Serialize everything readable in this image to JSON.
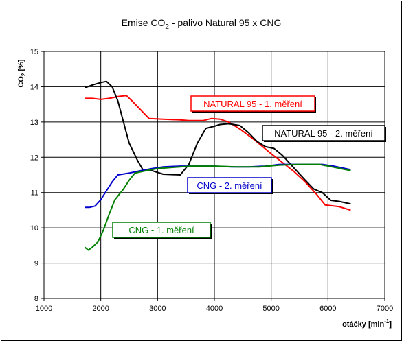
{
  "chart_data": {
    "type": "line",
    "title": "Emise CO",
    "title_sub": "2",
    "title_rest": " - palivo Natural 95 x CNG",
    "ylabel": "CO",
    "ylabel_sub": "2",
    "ylabel_unit": " [%]",
    "xlabel": "otáčky [min",
    "xlabel_sup": "-1",
    "xlabel_end": "]",
    "xlim": [
      1000,
      7000
    ],
    "ylim": [
      8,
      15
    ],
    "x_ticks": [
      "1000",
      "2000",
      "3000",
      "4000",
      "5000",
      "6000",
      "7000"
    ],
    "y_ticks": [
      "8",
      "9",
      "10",
      "11",
      "12",
      "13",
      "14",
      "15"
    ],
    "grid": true,
    "series": [
      {
        "name": "NATURAL 95 - 1. měření",
        "color": "#ff0000",
        "points": [
          [
            1720,
            13.67
          ],
          [
            1850,
            13.67
          ],
          [
            2000,
            13.64
          ],
          [
            2150,
            13.67
          ],
          [
            2300,
            13.72
          ],
          [
            2450,
            13.75
          ],
          [
            2550,
            13.6
          ],
          [
            2700,
            13.35
          ],
          [
            2850,
            13.1
          ],
          [
            3100,
            13.08
          ],
          [
            3400,
            13.06
          ],
          [
            3550,
            13.04
          ],
          [
            3800,
            13.04
          ],
          [
            3950,
            13.1
          ],
          [
            4100,
            13.08
          ],
          [
            4250,
            13.0
          ],
          [
            4450,
            12.8
          ],
          [
            4700,
            12.5
          ],
          [
            4850,
            12.3
          ],
          [
            5000,
            12.1
          ],
          [
            5200,
            11.85
          ],
          [
            5400,
            11.6
          ],
          [
            5600,
            11.3
          ],
          [
            5800,
            10.95
          ],
          [
            5950,
            10.65
          ],
          [
            6200,
            10.6
          ],
          [
            6400,
            10.5
          ]
        ]
      },
      {
        "name": "NATURAL 95 - 2. měření",
        "color": "#000000",
        "points": [
          [
            1720,
            13.97
          ],
          [
            1850,
            14.05
          ],
          [
            2000,
            14.12
          ],
          [
            2100,
            14.15
          ],
          [
            2200,
            14.0
          ],
          [
            2300,
            13.6
          ],
          [
            2400,
            13.0
          ],
          [
            2500,
            12.4
          ],
          [
            2650,
            11.9
          ],
          [
            2750,
            11.62
          ],
          [
            2900,
            11.62
          ],
          [
            3100,
            11.52
          ],
          [
            3400,
            11.5
          ],
          [
            3550,
            11.8
          ],
          [
            3700,
            12.4
          ],
          [
            3850,
            12.82
          ],
          [
            4000,
            12.88
          ],
          [
            4100,
            12.93
          ],
          [
            4250,
            12.95
          ],
          [
            4450,
            12.9
          ],
          [
            4600,
            12.7
          ],
          [
            4750,
            12.45
          ],
          [
            4900,
            12.3
          ],
          [
            5050,
            12.25
          ],
          [
            5200,
            12.05
          ],
          [
            5400,
            11.7
          ],
          [
            5600,
            11.35
          ],
          [
            5750,
            11.1
          ],
          [
            5900,
            11.0
          ],
          [
            6050,
            10.78
          ],
          [
            6200,
            10.75
          ],
          [
            6400,
            10.68
          ]
        ]
      },
      {
        "name": "CNG - 2. měření",
        "color": "#0000cc",
        "points": [
          [
            1720,
            10.58
          ],
          [
            1800,
            10.58
          ],
          [
            1900,
            10.62
          ],
          [
            2000,
            10.8
          ],
          [
            2100,
            11.05
          ],
          [
            2200,
            11.3
          ],
          [
            2300,
            11.5
          ],
          [
            2500,
            11.55
          ],
          [
            2700,
            11.62
          ],
          [
            2900,
            11.68
          ],
          [
            3100,
            11.73
          ],
          [
            3400,
            11.75
          ],
          [
            3700,
            11.75
          ],
          [
            4000,
            11.75
          ],
          [
            4300,
            11.73
          ],
          [
            4600,
            11.73
          ],
          [
            4900,
            11.75
          ],
          [
            5150,
            11.8
          ],
          [
            5400,
            11.8
          ],
          [
            5700,
            11.8
          ],
          [
            5900,
            11.8
          ],
          [
            6100,
            11.75
          ],
          [
            6400,
            11.65
          ]
        ]
      },
      {
        "name": "CNG - 1. měření",
        "color": "#008000",
        "points": [
          [
            1720,
            9.45
          ],
          [
            1780,
            9.37
          ],
          [
            1850,
            9.45
          ],
          [
            1950,
            9.6
          ],
          [
            2050,
            9.95
          ],
          [
            2150,
            10.4
          ],
          [
            2250,
            10.8
          ],
          [
            2400,
            11.1
          ],
          [
            2500,
            11.35
          ],
          [
            2600,
            11.55
          ],
          [
            2800,
            11.62
          ],
          [
            3000,
            11.68
          ],
          [
            3300,
            11.72
          ],
          [
            3600,
            11.75
          ],
          [
            4000,
            11.75
          ],
          [
            4400,
            11.73
          ],
          [
            4800,
            11.73
          ],
          [
            5150,
            11.78
          ],
          [
            5500,
            11.8
          ],
          [
            5850,
            11.8
          ],
          [
            6100,
            11.72
          ],
          [
            6400,
            11.62
          ]
        ]
      }
    ]
  }
}
